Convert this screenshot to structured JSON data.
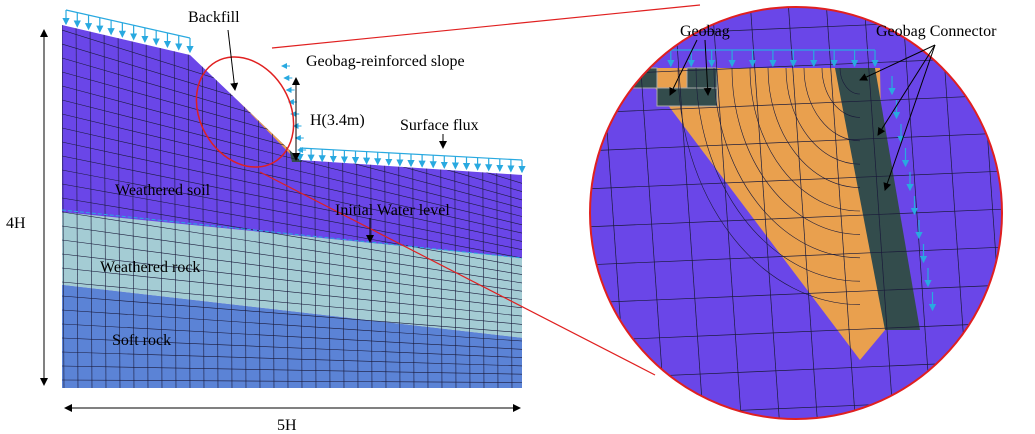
{
  "labels": {
    "backfill": "Backfill",
    "slope": "Geobag-reinforced slope",
    "height": "H(3.4m)",
    "surface_flux": "Surface flux",
    "weathered_soil": "Weathered soil",
    "water_level": "Initial Water level",
    "weathered_rock": "Weathered rock",
    "soft_rock": "Soft rock",
    "height_dim": "4H",
    "width_dim": "5H",
    "geobag": "Geobag",
    "connector": "Geobag Connector"
  }
}
